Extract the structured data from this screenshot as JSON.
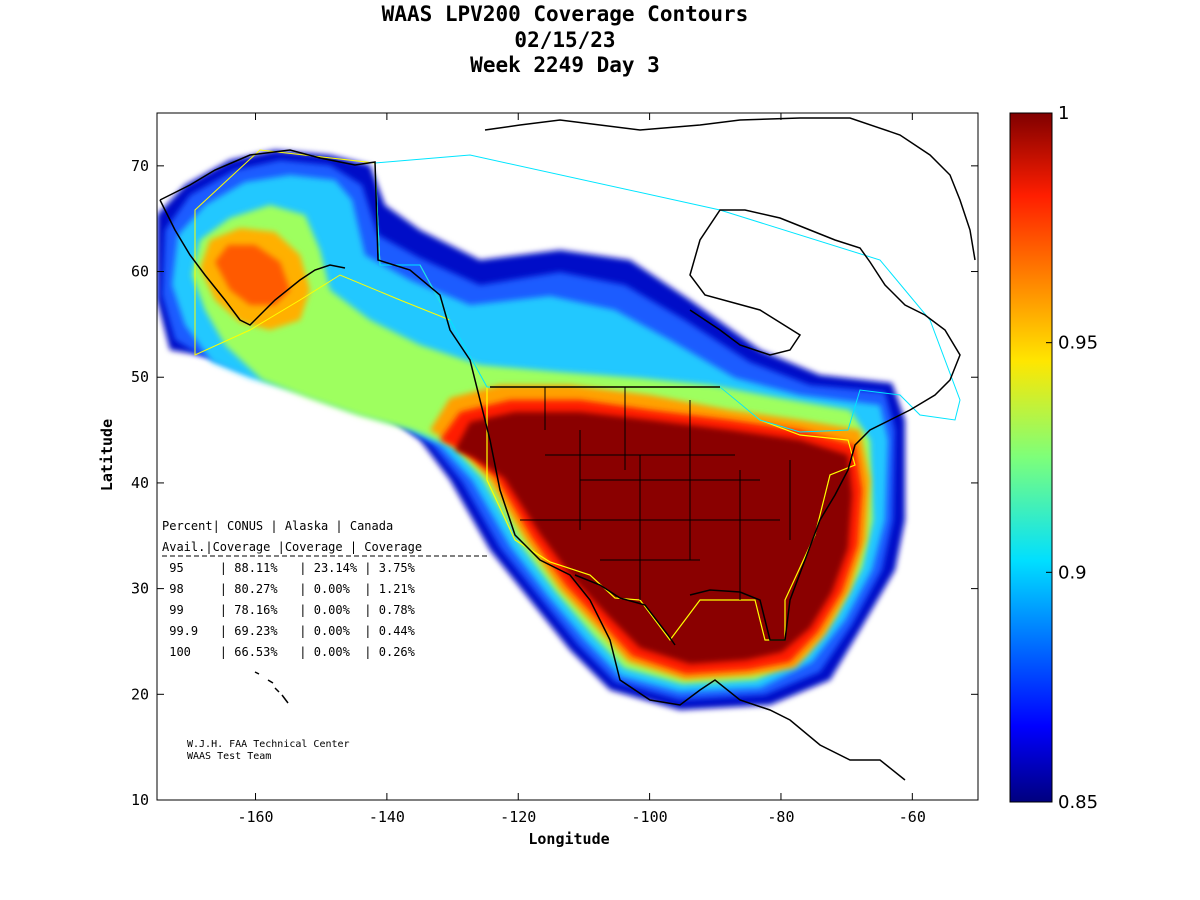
{
  "title": {
    "line1": "WAAS LPV200 Coverage Contours",
    "line2": "02/15/23",
    "line3": "Week 2249 Day 3"
  },
  "axes": {
    "xlabel": "Longitude",
    "ylabel": "Latitude",
    "xlim": [
      -175,
      -50
    ],
    "ylim": [
      10,
      75
    ],
    "xticks": [
      "-160",
      "-140",
      "-120",
      "-100",
      "-80",
      "-60"
    ],
    "yticks": [
      "70",
      "60",
      "50",
      "40",
      "30",
      "20",
      "10"
    ]
  },
  "colorbar": {
    "range": [
      0.85,
      1
    ],
    "colormap": "jet",
    "ticks": [
      "1",
      "0.95",
      "0.9",
      "0.85"
    ]
  },
  "colors": {
    "conus_boundary": "#ffff00",
    "canada_boundary": "#00e5ff",
    "coastline": "#000000"
  },
  "coverage_table": {
    "header1": [
      "Percent",
      "CONUS",
      "Alaska",
      "Canada"
    ],
    "header2": [
      "Avail.",
      "Coverage",
      "Coverage",
      "Coverage"
    ],
    "rows": [
      [
        "95",
        "88.11%",
        "23.14%",
        "3.75%"
      ],
      [
        "98",
        "80.27%",
        "0.00%",
        "1.21%"
      ],
      [
        "99",
        "78.16%",
        "0.00%",
        "0.78%"
      ],
      [
        "99.9",
        "69.23%",
        "0.00%",
        "0.44%"
      ],
      [
        "100",
        "66.53%",
        "0.00%",
        "0.26%"
      ]
    ]
  },
  "credit": {
    "line1": "W.J.H. FAA Technical Center",
    "line2": "WAAS Test Team"
  }
}
